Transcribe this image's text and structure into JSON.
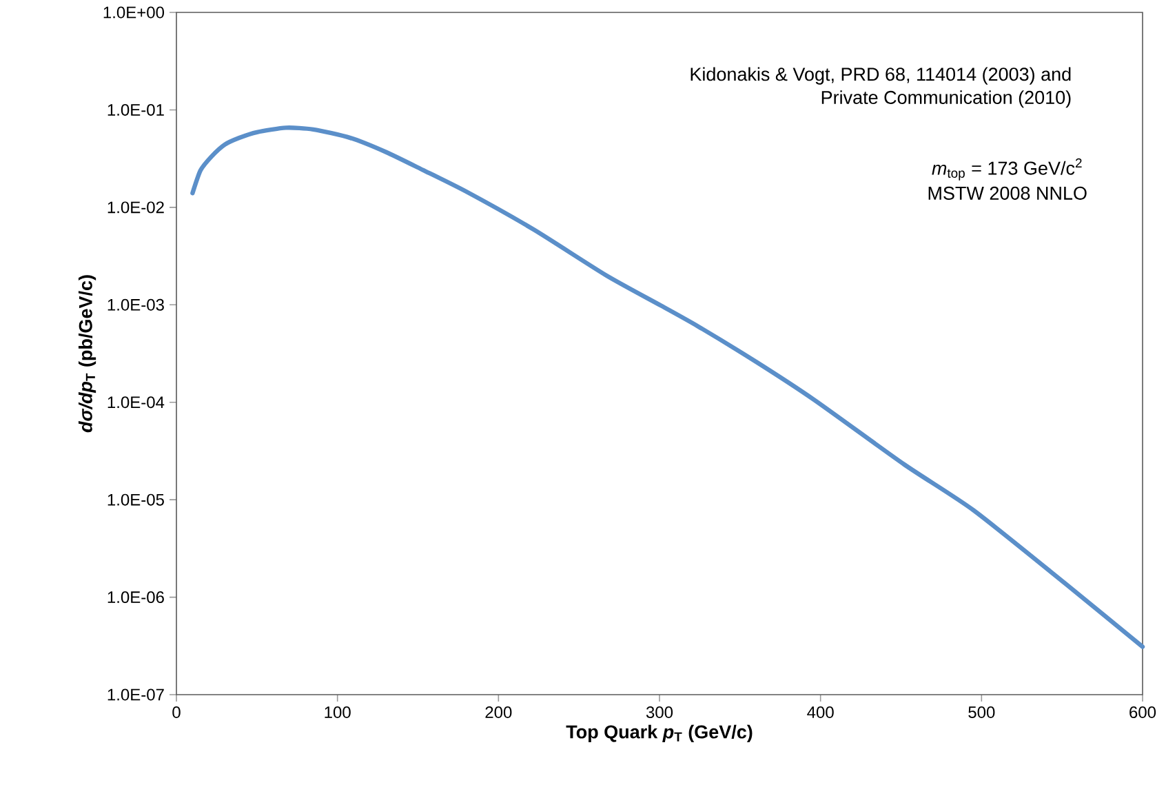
{
  "chart_data": {
    "type": "line",
    "xlabel": "Top Quark *p*$_{T}$ (GeV/c)",
    "ylabel": "*dσ/dp*$_{T}$ (pb/GeV/c)",
    "log": "y",
    "marker": "none",
    "line_style": "solid",
    "annotations": [
      "Kidonakis & Vogt, PRD 68, 114014 (2003) and",
      "Private Communication (2010)",
      "*m*$_{top}$ = 173 GeV/c$^{2}$",
      "MSTW 2008 NNLO"
    ],
    "xlim": [
      0,
      600
    ],
    "xticks": [
      0,
      100,
      200,
      300,
      400,
      500,
      600
    ],
    "ylim": [
      1e-07,
      1
    ],
    "yticks": [
      {
        "value": 1e-07,
        "label": "1.0E-07"
      },
      {
        "value": 1e-06,
        "label": "1.0E-06"
      },
      {
        "value": 1e-05,
        "label": "1.0E-05"
      },
      {
        "value": 0.0001,
        "label": "1.0E-04"
      },
      {
        "value": 0.001,
        "label": "1.0E-03"
      },
      {
        "value": 0.01,
        "label": "1.0E-02"
      },
      {
        "value": 0.1,
        "label": "1.0E-01"
      },
      {
        "value": 1,
        "label": "1.0E+00"
      }
    ],
    "x": [
      10,
      15,
      22,
      30,
      39,
      50,
      68,
      85,
      108,
      130,
      153,
      180,
      222,
      267,
      301,
      324,
      360,
      396,
      452,
      495,
      552,
      600
    ],
    "series": [
      {
        "color": "#5b8fc9",
        "values": [
          0.014,
          0.024,
          0.0335,
          0.044,
          0.0516,
          0.059,
          0.0655,
          0.063,
          0.0516,
          0.037,
          0.0242,
          0.0145,
          0.0059,
          0.002,
          0.00098,
          0.0006,
          0.00026,
          0.000106,
          2.3e-05,
          7.8e-06,
          1.38e-06,
          3.1e-07
        ]
      }
    ]
  }
}
